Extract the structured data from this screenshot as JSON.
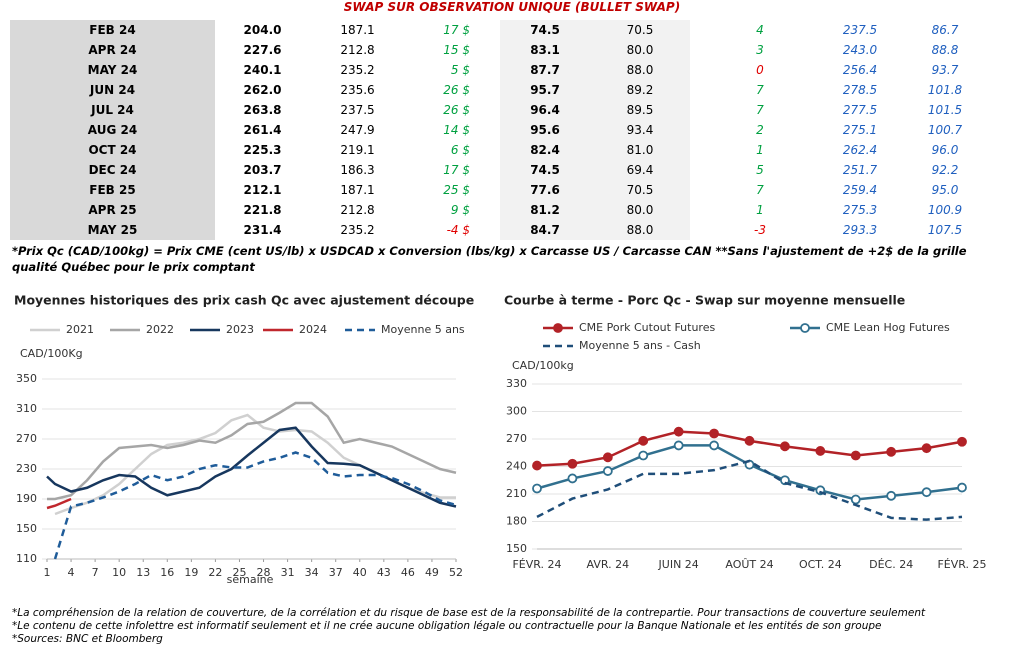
{
  "header": {
    "title": "SWAP SUR OBSERVATION UNIQUE (BULLET SWAP)"
  },
  "table": {
    "rows": [
      [
        "FEB 24",
        "204.0",
        "187.1",
        "17 $",
        "74.5",
        "70.5",
        "4",
        "237.5",
        "86.7"
      ],
      [
        "APR 24",
        "227.6",
        "212.8",
        "15 $",
        "83.1",
        "80.0",
        "3",
        "243.0",
        "88.8"
      ],
      [
        "MAY 24",
        "240.1",
        "235.2",
        "5 $",
        "87.7",
        "88.0",
        "0",
        "256.4",
        "93.7"
      ],
      [
        "JUN 24",
        "262.0",
        "235.6",
        "26 $",
        "95.7",
        "89.2",
        "7",
        "278.5",
        "101.8"
      ],
      [
        "JUL 24",
        "263.8",
        "237.5",
        "26 $",
        "96.4",
        "89.5",
        "7",
        "277.5",
        "101.5"
      ],
      [
        "AUG 24",
        "261.4",
        "247.9",
        "14 $",
        "95.6",
        "93.4",
        "2",
        "275.1",
        "100.7"
      ],
      [
        "OCT 24",
        "225.3",
        "219.1",
        "6 $",
        "82.4",
        "81.0",
        "1",
        "262.4",
        "96.0"
      ],
      [
        "DEC 24",
        "203.7",
        "186.3",
        "17 $",
        "74.5",
        "69.4",
        "5",
        "251.7",
        "92.2"
      ],
      [
        "FEB 25",
        "212.1",
        "187.1",
        "25 $",
        "77.6",
        "70.5",
        "7",
        "259.4",
        "95.0"
      ],
      [
        "APR 25",
        "221.8",
        "212.8",
        "9 $",
        "81.2",
        "80.0",
        "1",
        "275.3",
        "100.9"
      ],
      [
        "MAY 25",
        "231.4",
        "235.2",
        "-4 $",
        "84.7",
        "88.0",
        "-3",
        "293.3",
        "107.5"
      ]
    ]
  },
  "footnote": "*Prix Qc (CAD/100kg) = Prix CME (cent US/lb) x USDCAD x Conversion (lbs/kg) x Carcasse US / Carcasse CAN **Sans l'ajustement de +2$ de la grille qualité Québec pour le prix comptant",
  "chart_data": [
    {
      "type": "line",
      "title": "Moyennes historiques des prix cash Qc avec ajustement découpe",
      "y_label": "CAD/100Kg",
      "x_label": "semaine",
      "grid": true,
      "x": [
        1,
        2,
        4,
        6,
        8,
        10,
        12,
        14,
        16,
        18,
        20,
        22,
        24,
        26,
        28,
        30,
        32,
        34,
        36,
        38,
        40,
        42,
        44,
        46,
        48,
        50,
        52
      ],
      "xlim": [
        1,
        52
      ],
      "xticks": [
        1,
        4,
        7,
        10,
        13,
        16,
        19,
        22,
        25,
        28,
        31,
        34,
        37,
        40,
        43,
        46,
        49,
        52
      ],
      "ylim": [
        110,
        350
      ],
      "yticks": [
        110,
        150,
        190,
        230,
        270,
        310,
        350
      ],
      "series": [
        {
          "name": "2021",
          "color": "#d0d0d0",
          "values": [
            null,
            170,
            178,
            185,
            195,
            210,
            230,
            250,
            262,
            265,
            270,
            278,
            295,
            302,
            285,
            280,
            282,
            280,
            265,
            245,
            235,
            225,
            215,
            205,
            198,
            192,
            192
          ]
        },
        {
          "name": "2022",
          "color": "#a6a6a6",
          "values": [
            190,
            190,
            195,
            215,
            240,
            258,
            260,
            262,
            258,
            262,
            268,
            265,
            275,
            290,
            293,
            305,
            318,
            318,
            300,
            265,
            270,
            265,
            260,
            250,
            240,
            230,
            225
          ]
        },
        {
          "name": "2023",
          "color": "#17375e",
          "values": [
            220,
            210,
            200,
            205,
            215,
            222,
            220,
            205,
            195,
            200,
            205,
            220,
            230,
            248,
            265,
            282,
            285,
            260,
            238,
            237,
            235,
            225,
            215,
            205,
            195,
            185,
            180
          ]
        },
        {
          "name": "2024",
          "color": "#c0272d",
          "values": [
            178,
            181,
            190,
            null,
            null,
            null,
            null,
            null,
            null,
            null,
            null,
            null,
            null,
            null,
            null,
            null,
            null,
            null,
            null,
            null,
            null,
            null,
            null,
            null,
            null,
            null,
            null
          ]
        },
        {
          "name": "Moyenne 5 ans",
          "color": "#1f5c99",
          "style": "dashed",
          "values": [
            null,
            110,
            180,
            185,
            192,
            200,
            210,
            222,
            215,
            220,
            230,
            235,
            232,
            232,
            240,
            245,
            252,
            245,
            225,
            220,
            222,
            222,
            218,
            210,
            200,
            188,
            182
          ]
        }
      ]
    },
    {
      "type": "line",
      "title": "Courbe à terme - Porc Qc - Swap sur moyenne mensuelle",
      "y_label": "CAD/100kg",
      "grid": true,
      "categories": [
        "FÉVR. 24",
        null,
        "AVR. 24",
        null,
        "JUIN 24",
        null,
        "AOÛT 24",
        null,
        "OCT. 24",
        null,
        "DÉC. 24",
        null,
        "FÉVR. 25"
      ],
      "ylim": [
        150,
        330
      ],
      "yticks": [
        150,
        180,
        210,
        240,
        270,
        300,
        330
      ],
      "series": [
        {
          "name": "CME Pork Cutout Futures",
          "color": "#b22227",
          "marker": "filled",
          "values": [
            241,
            243,
            250,
            268,
            278,
            276,
            268,
            262,
            257,
            252,
            256,
            260,
            267
          ]
        },
        {
          "name": "CME Lean Hog Futures",
          "color": "#31708f",
          "marker": "open",
          "values": [
            216,
            227,
            235,
            252,
            263,
            263,
            242,
            225,
            214,
            204,
            208,
            212,
            217
          ]
        },
        {
          "name": "Moyenne 5 ans - Cash",
          "color": "#1f4e79",
          "style": "dashed",
          "values": [
            185,
            205,
            215,
            232,
            232,
            236,
            246,
            222,
            212,
            198,
            184,
            182,
            185
          ]
        }
      ]
    }
  ],
  "notes": [
    "*La compréhension de la relation de couverture, de la corrélation et du risque de base est de la responsabilité de la contrepartie. Pour transactions de couverture seulement",
    "*Le contenu de cette infolettre est informatif seulement et il ne crée aucune obligation légale ou contractuelle pour la Banque Nationale et les entités de son groupe",
    "*Sources: BNC et Bloomberg"
  ]
}
